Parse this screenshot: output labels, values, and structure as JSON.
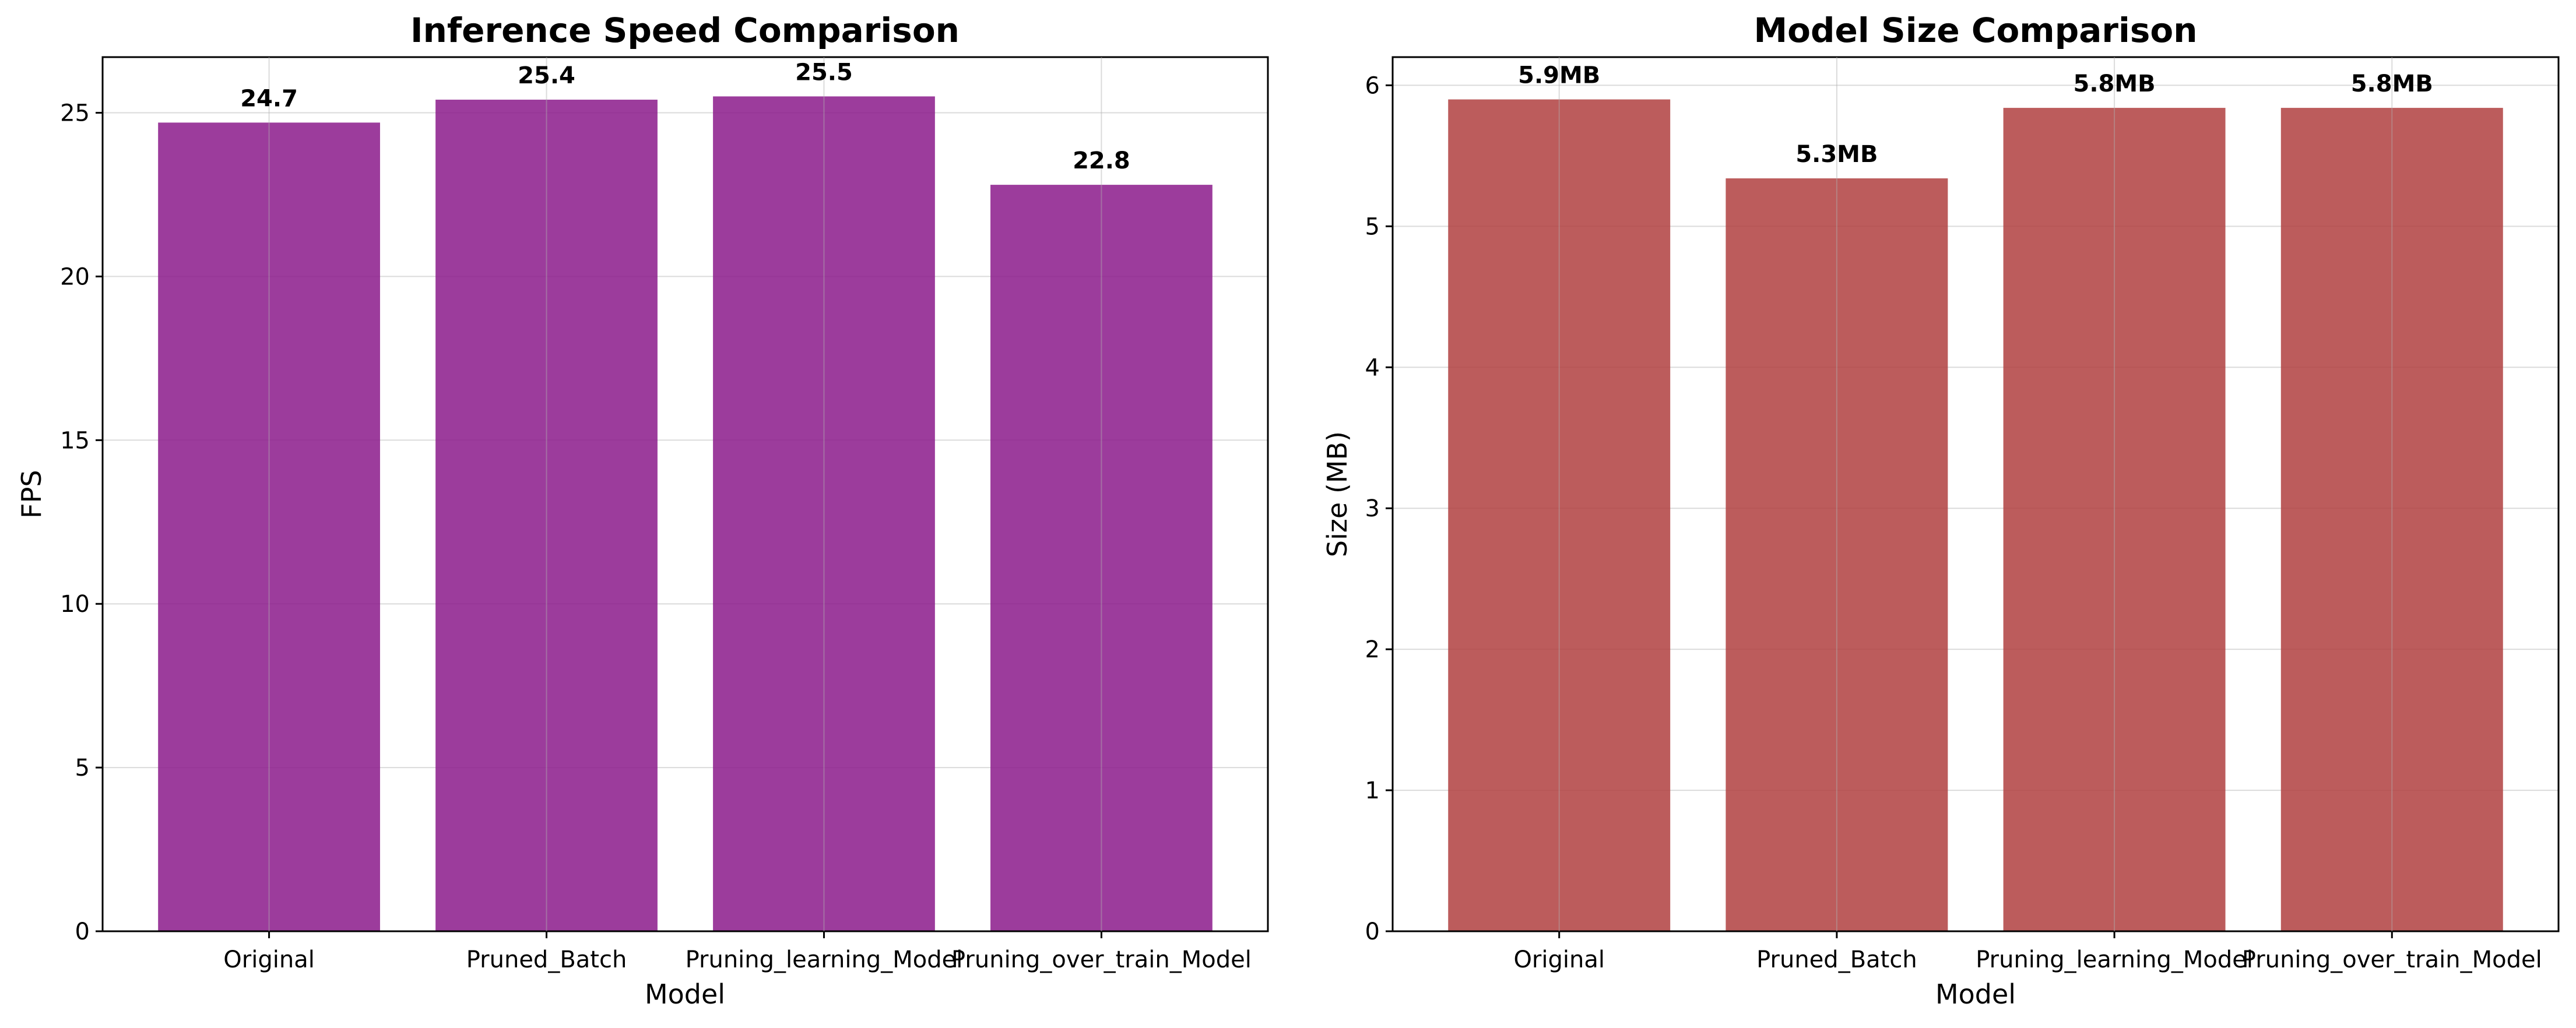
{
  "chart_data": [
    {
      "type": "bar",
      "title": "Inference Speed Comparison",
      "xlabel": "Model",
      "ylabel": "FPS",
      "categories": [
        "Original",
        "Pruned_Batch",
        "Pruning_learning_Model",
        "Pruning_over_train_Model"
      ],
      "values": [
        24.7,
        25.4,
        25.5,
        22.8
      ],
      "value_labels": [
        "24.7",
        "25.4",
        "25.5",
        "22.8"
      ],
      "ylim": [
        0,
        26.7
      ],
      "yticks": [
        0,
        5,
        10,
        15,
        20,
        25
      ],
      "color": "#8b1a8b",
      "grid": true
    },
    {
      "type": "bar",
      "title": "Model Size Comparison",
      "xlabel": "Model",
      "ylabel": "Size (MB)",
      "categories": [
        "Original",
        "Pruned_Batch",
        "Pruning_learning_Model",
        "Pruning_over_train_Model"
      ],
      "values": [
        5.9,
        5.34,
        5.84,
        5.84
      ],
      "value_labels": [
        "5.9MB",
        "5.3MB",
        "5.8MB",
        "5.8MB"
      ],
      "ylim": [
        0,
        6.2
      ],
      "yticks": [
        0,
        1,
        2,
        3,
        4,
        5,
        6
      ],
      "color": "#b04040",
      "grid": true
    }
  ]
}
